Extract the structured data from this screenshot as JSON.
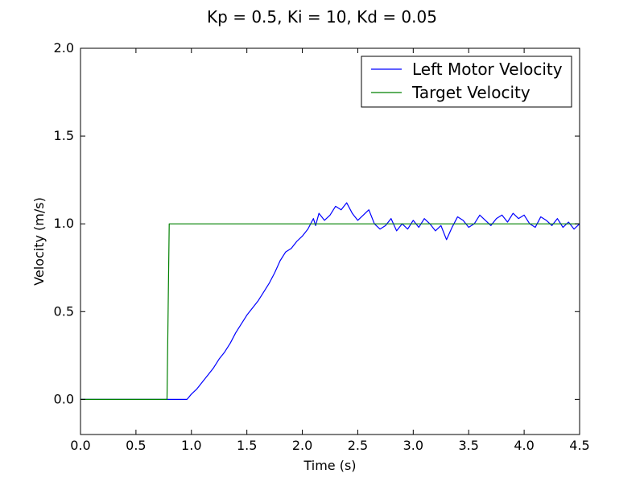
{
  "chart_data": {
    "type": "line",
    "title": "Kp = 0.5, Ki = 10, Kd = 0.05",
    "xlabel": "Time (s)",
    "ylabel": "Velocity (m/s)",
    "xlim": [
      0.0,
      4.5
    ],
    "ylim": [
      -0.2,
      2.0
    ],
    "grid": false,
    "legend_position": "top-right",
    "xticks": [
      0.0,
      0.5,
      1.0,
      1.5,
      2.0,
      2.5,
      3.0,
      3.5,
      4.0,
      4.5
    ],
    "xtick_labels": [
      "0.0",
      "0.5",
      "1.0",
      "1.5",
      "2.0",
      "2.5",
      "3.0",
      "3.5",
      "4.0",
      "4.5"
    ],
    "yticks": [
      0.0,
      0.5,
      1.0,
      1.5,
      2.0
    ],
    "ytick_labels": [
      "0.0",
      "0.5",
      "1.0",
      "1.5",
      "2.0"
    ],
    "series": [
      {
        "name": "Left Motor Velocity",
        "color": "#0000ff",
        "x": [
          0.0,
          0.96,
          1.0,
          1.05,
          1.1,
          1.15,
          1.2,
          1.25,
          1.3,
          1.35,
          1.4,
          1.45,
          1.5,
          1.55,
          1.6,
          1.65,
          1.7,
          1.75,
          1.8,
          1.85,
          1.9,
          1.95,
          2.0,
          2.05,
          2.1,
          2.12,
          2.15,
          2.2,
          2.25,
          2.3,
          2.35,
          2.4,
          2.45,
          2.5,
          2.55,
          2.6,
          2.65,
          2.7,
          2.75,
          2.8,
          2.85,
          2.9,
          2.95,
          3.0,
          3.05,
          3.1,
          3.15,
          3.2,
          3.25,
          3.3,
          3.35,
          3.4,
          3.45,
          3.5,
          3.55,
          3.6,
          3.65,
          3.7,
          3.75,
          3.8,
          3.85,
          3.9,
          3.95,
          4.0,
          4.05,
          4.1,
          4.15,
          4.2,
          4.25,
          4.3,
          4.35,
          4.4,
          4.45,
          4.5
        ],
        "y": [
          0.0,
          0.0,
          0.03,
          0.06,
          0.1,
          0.14,
          0.18,
          0.23,
          0.27,
          0.32,
          0.38,
          0.43,
          0.48,
          0.52,
          0.56,
          0.61,
          0.66,
          0.72,
          0.79,
          0.84,
          0.86,
          0.9,
          0.93,
          0.97,
          1.03,
          0.99,
          1.06,
          1.02,
          1.05,
          1.1,
          1.08,
          1.12,
          1.06,
          1.02,
          1.05,
          1.08,
          1.0,
          0.97,
          0.99,
          1.03,
          0.96,
          1.0,
          0.97,
          1.02,
          0.98,
          1.03,
          1.0,
          0.96,
          0.99,
          0.91,
          0.98,
          1.04,
          1.02,
          0.98,
          1.0,
          1.05,
          1.02,
          0.99,
          1.03,
          1.05,
          1.01,
          1.06,
          1.03,
          1.05,
          1.0,
          0.98,
          1.04,
          1.02,
          0.99,
          1.03,
          0.98,
          1.01,
          0.97,
          1.0
        ]
      },
      {
        "name": "Target Velocity",
        "color": "#008000",
        "x": [
          0.0,
          0.78,
          0.8,
          4.5
        ],
        "y": [
          0.0,
          0.0,
          1.0,
          1.0
        ]
      }
    ]
  }
}
